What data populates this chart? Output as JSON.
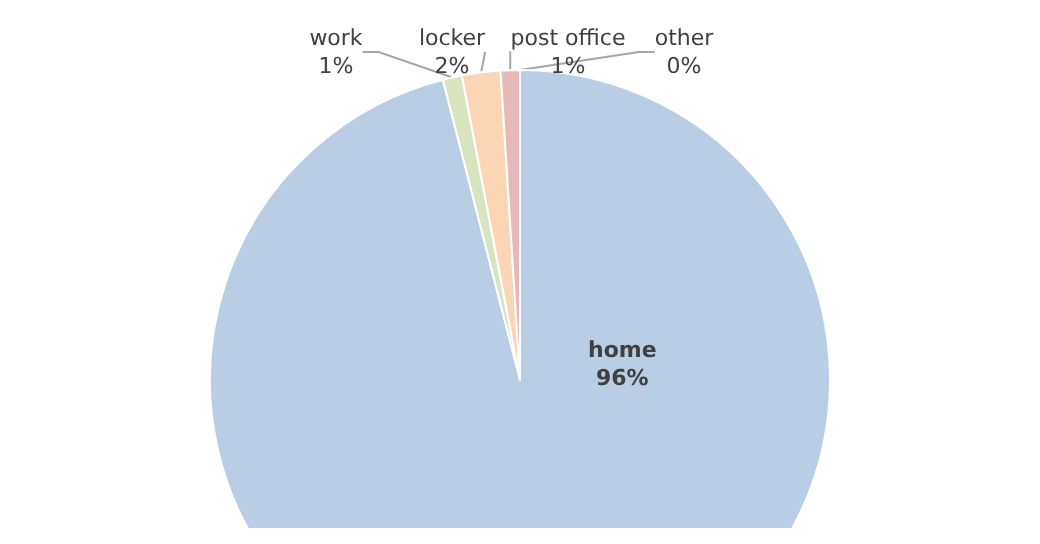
{
  "chart_data": {
    "type": "pie",
    "categories": [
      "home",
      "work",
      "locker",
      "post office",
      "other"
    ],
    "values": [
      96,
      1,
      2,
      1,
      0
    ],
    "value_labels": [
      "96%",
      "1%",
      "2%",
      "1%",
      "0%"
    ],
    "colors": [
      "#b9cde5",
      "#d7e4bd",
      "#fcd5b5",
      "#e6b9b8",
      "#ccc1da"
    ],
    "legend": false
  }
}
